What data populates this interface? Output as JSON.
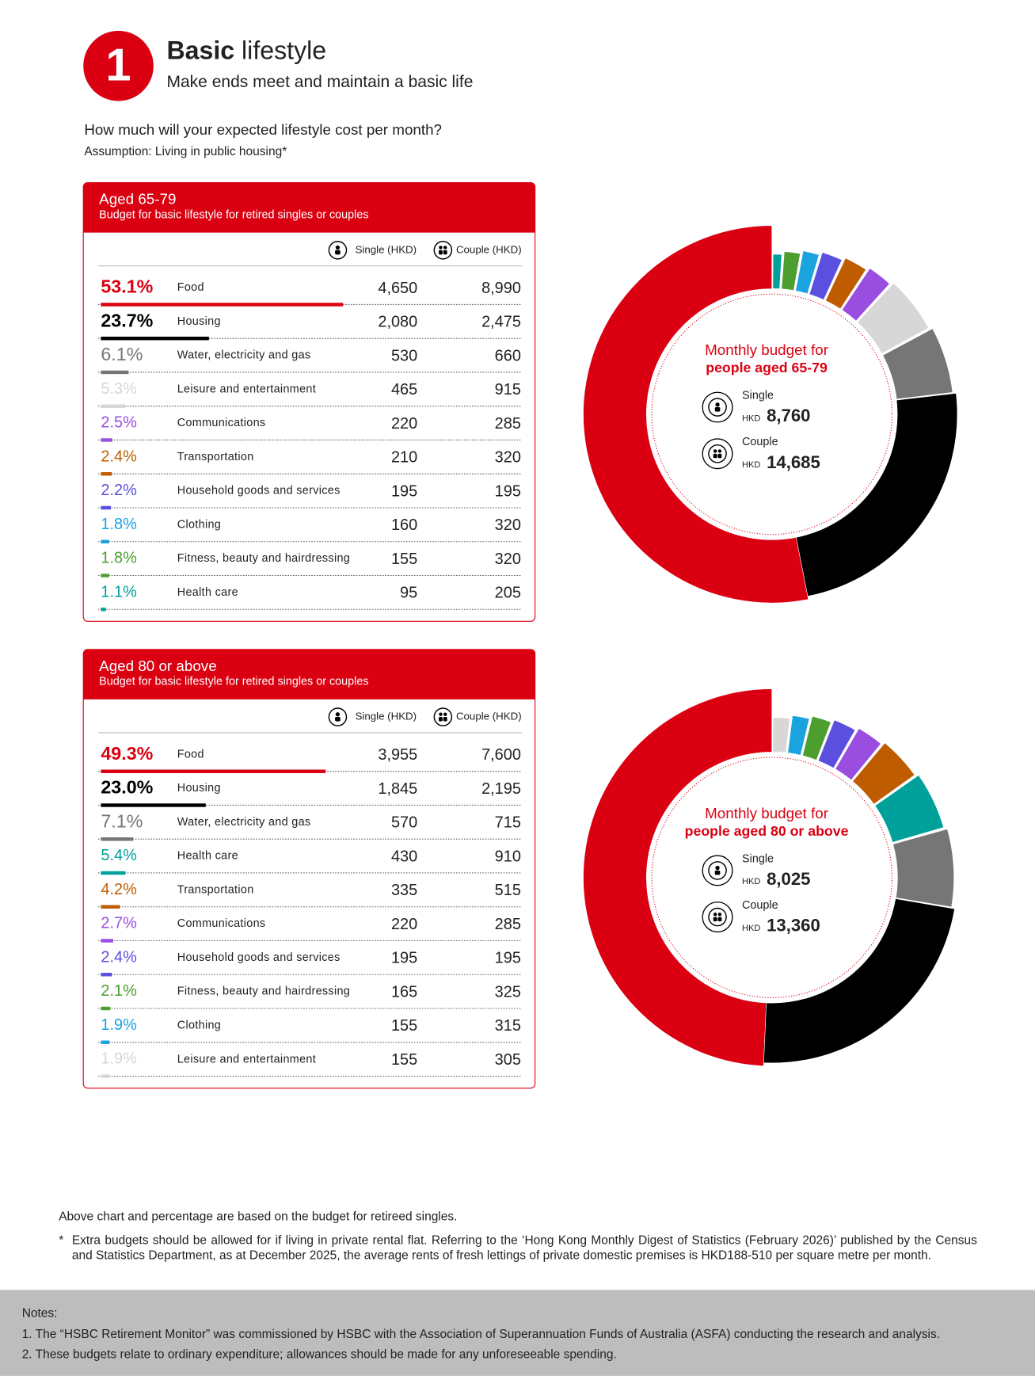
{
  "header": {
    "number": "1",
    "title_bold": "Basic",
    "title_rest": "lifestyle",
    "subtitle": "Make ends meet and maintain a basic life",
    "question": "How much will your expected lifestyle cost per month?",
    "assumption": "Assumption: Living in public housing*"
  },
  "chart_data": [
    {
      "type": "donut",
      "title": "Aged 65-79",
      "subtitle": "Budget for basic lifestyle for retired singles or couples",
      "column_labels": [
        "Single (HKD)",
        "Couple (HKD)"
      ],
      "categories": [
        "Food",
        "Housing",
        "Water, electricity and gas",
        "Leisure and entertainment",
        "Communications",
        "Transportation",
        "Household goods and services",
        "Clothing",
        "Fitness, beauty and hairdressing",
        "Health care"
      ],
      "values": [
        53.1,
        23.7,
        6.1,
        5.3,
        2.5,
        2.4,
        2.2,
        1.8,
        1.8,
        1.1
      ],
      "value_labels": [
        "53.1%",
        "23.7%",
        "6.1%",
        "5.3%",
        "2.5%",
        "2.4%",
        "2.2%",
        "1.8%",
        "1.8%",
        "1.1%"
      ],
      "colors": [
        "#db0011",
        "#000000",
        "#767676",
        "#d7d7d7",
        "#9a4ee0",
        "#c05c00",
        "#5b4fe0",
        "#1ba3e0",
        "#4c9e2f",
        "#00a19a"
      ],
      "single": [
        "4,650",
        "2,080",
        "530",
        "465",
        "220",
        "210",
        "195",
        "160",
        "155",
        "95"
      ],
      "couple": [
        "8,990",
        "2,475",
        "660",
        "915",
        "285",
        "320",
        "195",
        "320",
        "320",
        "205"
      ],
      "center_title": [
        "Monthly budget for",
        "people aged 65-79"
      ],
      "totals": [
        {
          "label": "Single",
          "currency": "HKD",
          "amount": "8,760"
        },
        {
          "label": "Couple",
          "currency": "HKD",
          "amount": "14,685"
        }
      ]
    },
    {
      "type": "donut",
      "title": "Aged 80 or above",
      "subtitle": "Budget for basic lifestyle for retired singles or couples",
      "column_labels": [
        "Single (HKD)",
        "Couple (HKD)"
      ],
      "categories": [
        "Food",
        "Housing",
        "Water, electricity and gas",
        "Health care",
        "Transportation",
        "Communications",
        "Household goods and services",
        "Fitness, beauty and hairdressing",
        "Clothing",
        "Leisure and entertainment"
      ],
      "values": [
        49.3,
        23.0,
        7.1,
        5.4,
        4.2,
        2.7,
        2.4,
        2.1,
        1.9,
        1.9
      ],
      "value_labels": [
        "49.3%",
        "23.0%",
        "7.1%",
        "5.4%",
        "4.2%",
        "2.7%",
        "2.4%",
        "2.1%",
        "1.9%",
        "1.9%"
      ],
      "colors": [
        "#db0011",
        "#000000",
        "#767676",
        "#00a19a",
        "#c05c00",
        "#9a4ee0",
        "#5b4fe0",
        "#4c9e2f",
        "#1ba3e0",
        "#d7d7d7"
      ],
      "single": [
        "3,955",
        "1,845",
        "570",
        "430",
        "335",
        "220",
        "195",
        "165",
        "155",
        "155"
      ],
      "couple": [
        "7,600",
        "2,195",
        "715",
        "910",
        "515",
        "285",
        "195",
        "325",
        "315",
        "305"
      ],
      "center_title": [
        "Monthly budget for",
        "people aged 80 or above"
      ],
      "totals": [
        {
          "label": "Single",
          "currency": "HKD",
          "amount": "8,025"
        },
        {
          "label": "Couple",
          "currency": "HKD",
          "amount": "13,360"
        }
      ]
    }
  ],
  "footer": {
    "basis": "Above chart and percentage are based on the budget for retireed singles.",
    "asterisk": "*",
    "note": "Extra budgets should be allowed for if living in private rental flat. Referring to the ‘Hong Kong Monthly Digest of Statistics (February 2026)’ published by the Census and Statistics Department, as at December 2025, the average rents of fresh lettings of private domestic premises is HKD188-510 per square metre per month."
  },
  "notes": {
    "title": "Notes:",
    "items": [
      "1. The “HSBC Retirement Monitor” was commissioned by HSBC with the Association of Superannuation Funds of Australia (ASFA) conducting the research and analysis.",
      "2. These budgets relate to ordinary expenditure; allowances should be made for any unforeseeable spending."
    ]
  }
}
